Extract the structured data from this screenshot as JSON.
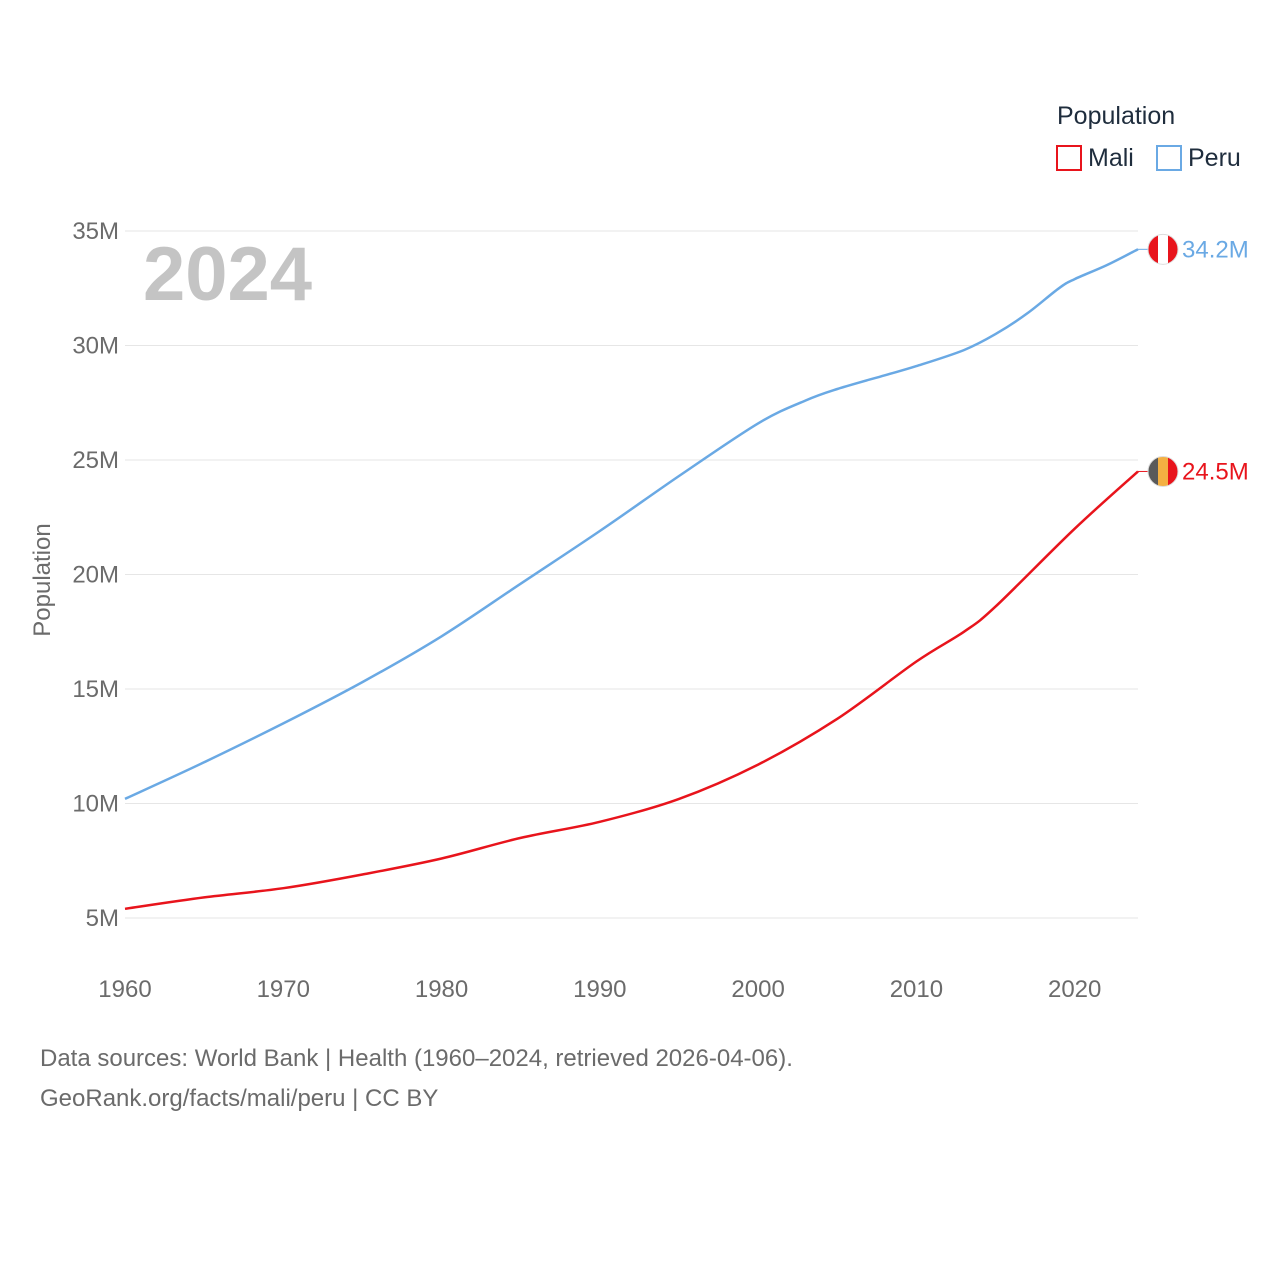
{
  "legend": {
    "title": "Population"
  },
  "year_label": "2024",
  "footer": {
    "source": "Data sources: World Bank | Health (1960–2024, retrieved 2026-04-06).",
    "credit": "GeoRank.org/facts/mali/peru | CC BY"
  },
  "chart_data": {
    "type": "line",
    "title": "",
    "xlabel": "",
    "ylabel": "Population",
    "xlim": [
      1960,
      2024
    ],
    "ylim": [
      4000000,
      35000000
    ],
    "x_ticks": [
      1960,
      1970,
      1980,
      1990,
      2000,
      2010,
      2020
    ],
    "y_ticks": [
      {
        "value": 5000000,
        "label": "5M"
      },
      {
        "value": 10000000,
        "label": "10M"
      },
      {
        "value": 15000000,
        "label": "15M"
      },
      {
        "value": 20000000,
        "label": "20M"
      },
      {
        "value": 25000000,
        "label": "25M"
      },
      {
        "value": 30000000,
        "label": "30M"
      },
      {
        "value": 35000000,
        "label": "35M"
      }
    ],
    "series": [
      {
        "name": "Mali",
        "color": "#e8141c",
        "end_label": "24.5M",
        "flag_colors": [
          "#5a5a5a",
          "#f4b042",
          "#e8141c"
        ],
        "x": [
          1960,
          1965,
          1970,
          1975,
          1980,
          1985,
          1990,
          1995,
          2000,
          2005,
          2010,
          2013,
          2015,
          2020,
          2024
        ],
        "values": [
          5400000,
          5900000,
          6300000,
          6900000,
          7600000,
          8500000,
          9200000,
          10200000,
          11700000,
          13700000,
          16200000,
          17500000,
          18600000,
          22000000,
          24500000
        ]
      },
      {
        "name": "Peru",
        "color": "#6aa9e4",
        "end_label": "34.2M",
        "flag_colors": [
          "#e8141c",
          "#ffffff",
          "#e8141c"
        ],
        "x": [
          1960,
          1965,
          1970,
          1975,
          1980,
          1985,
          1990,
          1995,
          2000,
          2003,
          2005,
          2008,
          2010,
          2013,
          2015,
          2017,
          2019,
          2020,
          2022,
          2024
        ],
        "values": [
          10200000,
          11800000,
          13500000,
          15300000,
          17300000,
          19600000,
          21900000,
          24300000,
          26600000,
          27600000,
          28100000,
          28700000,
          29100000,
          29800000,
          30500000,
          31400000,
          32500000,
          32900000,
          33500000,
          34200000
        ]
      }
    ]
  }
}
